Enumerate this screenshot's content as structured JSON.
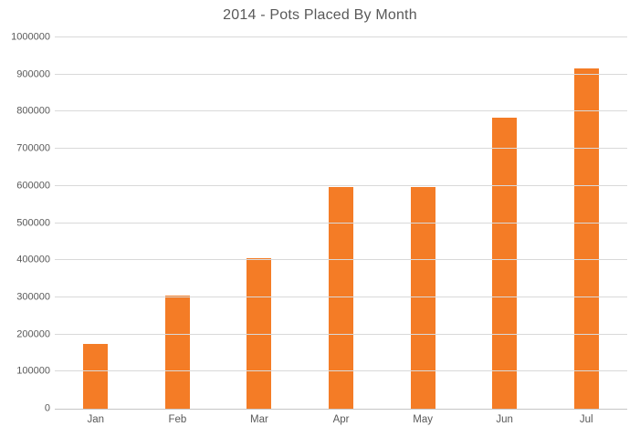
{
  "chart_data": {
    "type": "bar",
    "title": "2014 - Pots Placed By Month",
    "categories": [
      "Jan",
      "Feb",
      "Mar",
      "Apr",
      "May",
      "Jun",
      "Jul"
    ],
    "values": [
      175000,
      305000,
      405000,
      598000,
      598000,
      785000,
      916000
    ],
    "xlabel": "",
    "ylabel": "",
    "ylim": [
      0,
      1000000
    ],
    "y_tick_step": 100000,
    "y_tick_labels": [
      "0",
      "100000",
      "200000",
      "300000",
      "400000",
      "500000",
      "600000",
      "700000",
      "800000",
      "900000",
      "1000000"
    ],
    "grid": "horizontal",
    "legend": "none",
    "colors": {
      "bar": "#F47C26",
      "gridline": "#D9D9D9",
      "axis_line": "#C6C6C6",
      "text": "#595959",
      "background": "#FFFFFF"
    }
  }
}
